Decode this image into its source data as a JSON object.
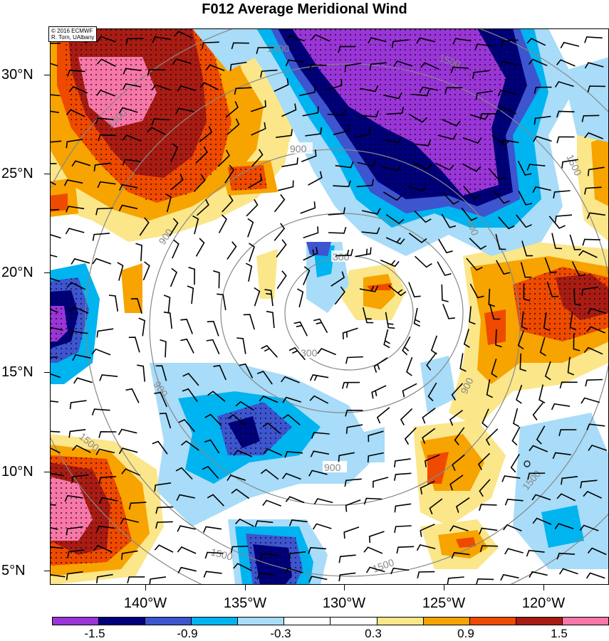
{
  "title": "F012 Average Meridional Wind",
  "credit": [
    "© 2016 ECMWF",
    "R. Torn, UAlbany"
  ],
  "lat_labels": [
    "30°N",
    "25°N",
    "20°N",
    "15°N",
    "10°N",
    "5°N"
  ],
  "lon_labels": [
    "140°W",
    "135°W",
    "130°W",
    "125°W",
    "120°W"
  ],
  "colorbar": {
    "labels": [
      "-1.5",
      "-0.9",
      "-0.3",
      "0.3",
      "0.9",
      "1.5"
    ],
    "colors": [
      "#9a35d8",
      "#00007a",
      "#3d55cf",
      "#00b4f0",
      "#a8dcf8",
      "#ffffff",
      "#ffffff",
      "#fbe68a",
      "#f7a300",
      "#ee4a00",
      "#a81c14",
      "#f777a8"
    ]
  },
  "contour_labels": {
    "r300": "300",
    "r900": "900",
    "r1500": "1500"
  }
}
